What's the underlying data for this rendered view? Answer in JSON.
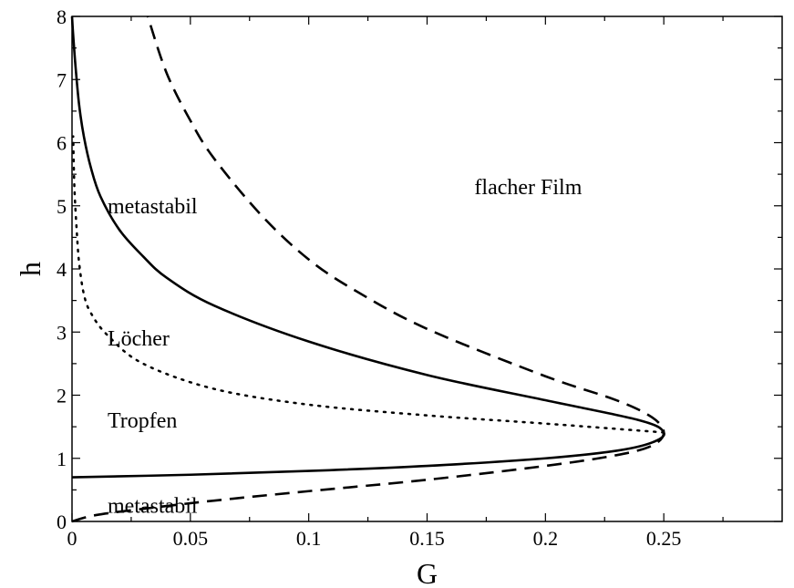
{
  "chart_data": {
    "type": "line",
    "xlabel": "G",
    "ylabel": "h",
    "xlim": [
      0,
      0.3
    ],
    "ylim": [
      0,
      8
    ],
    "x_ticks": [
      0,
      0.05,
      0.1,
      0.15,
      0.2,
      0.25
    ],
    "x_tick_labels": [
      "0",
      "0.05",
      "0.1",
      "0.15",
      "0.2",
      "0.25"
    ],
    "x_minor_ticks": [
      0.025,
      0.075,
      0.125,
      0.175,
      0.225,
      0.275
    ],
    "y_ticks": [
      0,
      1,
      2,
      3,
      4,
      5,
      6,
      7,
      8
    ],
    "y_tick_labels": [
      "0",
      "1",
      "2",
      "3",
      "4",
      "5",
      "6",
      "7",
      "8"
    ],
    "y_minor_ticks": [
      0.5,
      1.5,
      2.5,
      3.5,
      4.5,
      5.5,
      6.5,
      7.5
    ],
    "grid": false,
    "series": [
      {
        "style": "dashed",
        "color": "#000000",
        "points": [
          [
            0.0,
            0.0
          ],
          [
            0.01,
            0.1
          ],
          [
            0.03,
            0.2
          ],
          [
            0.06,
            0.33
          ],
          [
            0.1,
            0.48
          ],
          [
            0.15,
            0.66
          ],
          [
            0.2,
            0.88
          ],
          [
            0.23,
            1.05
          ],
          [
            0.245,
            1.2
          ],
          [
            0.25,
            1.41
          ],
          [
            0.245,
            1.65
          ],
          [
            0.23,
            1.92
          ],
          [
            0.2,
            2.3
          ],
          [
            0.15,
            3.05
          ],
          [
            0.12,
            3.65
          ],
          [
            0.1,
            4.15
          ],
          [
            0.08,
            4.85
          ],
          [
            0.06,
            5.75
          ],
          [
            0.05,
            6.35
          ],
          [
            0.04,
            7.1
          ],
          [
            0.032,
            8.0
          ]
        ]
      },
      {
        "style": "solid",
        "color": "#000000",
        "points": [
          [
            0.0,
            0.7
          ],
          [
            0.05,
            0.74
          ],
          [
            0.1,
            0.8
          ],
          [
            0.15,
            0.88
          ],
          [
            0.2,
            1.0
          ],
          [
            0.23,
            1.12
          ],
          [
            0.245,
            1.25
          ],
          [
            0.25,
            1.41
          ],
          [
            0.24,
            1.6
          ],
          [
            0.2,
            1.92
          ],
          [
            0.15,
            2.32
          ],
          [
            0.1,
            2.85
          ],
          [
            0.06,
            3.42
          ],
          [
            0.04,
            3.86
          ],
          [
            0.03,
            4.2
          ],
          [
            0.02,
            4.62
          ],
          [
            0.012,
            5.15
          ],
          [
            0.008,
            5.6
          ],
          [
            0.005,
            6.1
          ],
          [
            0.003,
            6.6
          ],
          [
            0.0015,
            7.2
          ],
          [
            0.0005,
            7.7
          ],
          [
            0.0,
            8.0
          ]
        ]
      },
      {
        "style": "dotted",
        "color": "#000000",
        "points": [
          [
            0.25,
            1.41
          ],
          [
            0.2,
            1.55
          ],
          [
            0.15,
            1.68
          ],
          [
            0.1,
            1.85
          ],
          [
            0.06,
            2.1
          ],
          [
            0.03,
            2.5
          ],
          [
            0.015,
            2.95
          ],
          [
            0.008,
            3.3
          ],
          [
            0.005,
            3.6
          ],
          [
            0.003,
            4.1
          ],
          [
            0.002,
            4.6
          ],
          [
            0.001,
            5.3
          ],
          [
            0.0005,
            6.1
          ]
        ]
      }
    ],
    "annotations": [
      {
        "text": "flacher Film",
        "x": 0.17,
        "y": 5.3
      },
      {
        "text": "metastabil",
        "x": 0.015,
        "y": 5.0
      },
      {
        "text": "Löcher",
        "x": 0.015,
        "y": 2.9
      },
      {
        "text": "Tropfen",
        "x": 0.015,
        "y": 1.6
      },
      {
        "text": "metastabil",
        "x": 0.015,
        "y": 0.25
      }
    ]
  }
}
